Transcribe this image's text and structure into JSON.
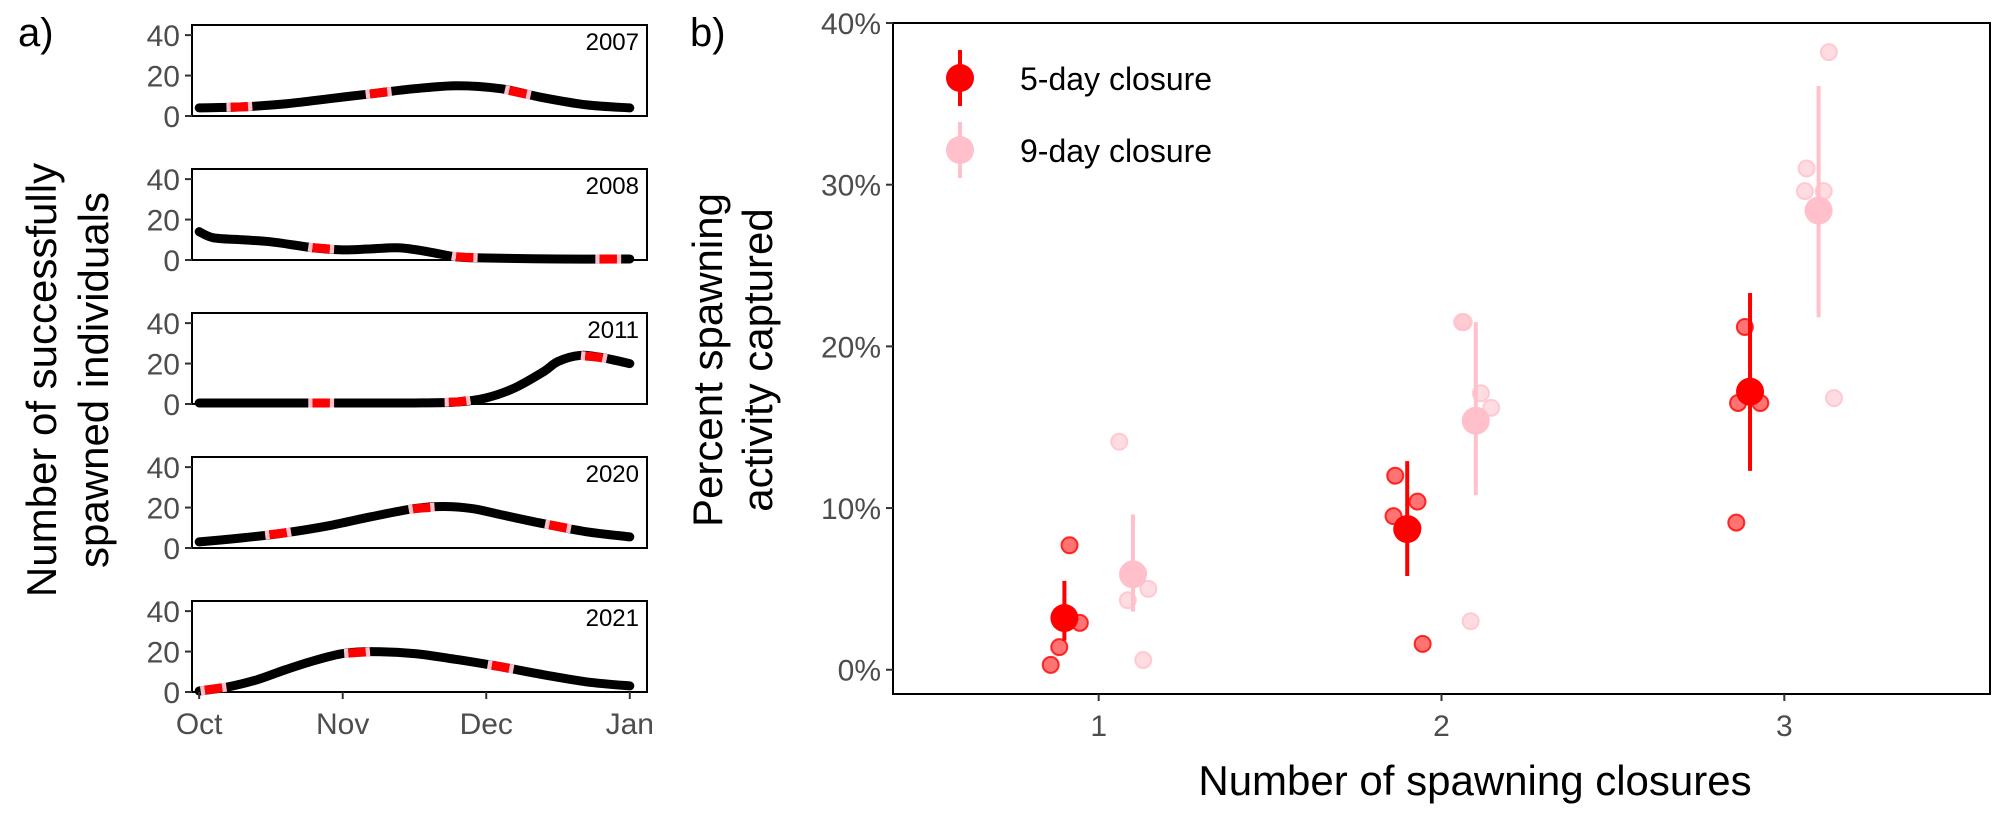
{
  "panel_a": {
    "label": "a)",
    "ylabel_line1": "Number of successfully",
    "ylabel_line2": "spawned individuals",
    "chart_data": {
      "type": "line",
      "ylim": [
        0,
        45
      ],
      "xlim": [
        -0.05,
        3.12
      ],
      "y_ticks": [
        "0",
        "20",
        "40"
      ],
      "y_tick_values": [
        0,
        20,
        40
      ],
      "x_ticks": [
        "Oct",
        "Nov",
        "Dec",
        "Jan"
      ],
      "x_tick_values": [
        0,
        1,
        2,
        3
      ],
      "colors": {
        "line": "#000000",
        "closure_5day": "#ff0000",
        "closure_9day": "#ffc0cb"
      },
      "panels": [
        {
          "year": "2007",
          "x": [
            0,
            0.3,
            0.6,
            0.9,
            1.2,
            1.5,
            1.8,
            2.1,
            2.4,
            2.7,
            3.0
          ],
          "y": [
            4,
            4.5,
            6,
            8.5,
            11,
            13.5,
            15,
            13.5,
            9,
            5.5,
            4
          ],
          "closures": [
            0.28,
            1.25,
            2.22
          ]
        },
        {
          "year": "2008",
          "x": [
            0,
            0.1,
            0.3,
            0.5,
            0.8,
            1.0,
            1.2,
            1.4,
            1.6,
            1.8,
            2.0,
            2.5,
            3.0
          ],
          "y": [
            14,
            11,
            10,
            9,
            6,
            5,
            5.5,
            6,
            4,
            1.5,
            1,
            0.5,
            0.5
          ],
          "closures": [
            0.85,
            1.85,
            2.85
          ]
        },
        {
          "year": "2011",
          "x": [
            0,
            0.5,
            1.0,
            1.5,
            1.8,
            2.0,
            2.2,
            2.4,
            2.5,
            2.65,
            2.8,
            3.0
          ],
          "y": [
            0.5,
            0.5,
            0.5,
            0.5,
            1,
            3,
            8,
            16,
            21,
            24,
            23,
            20
          ],
          "closures": [
            0.85,
            1.8,
            2.75
          ]
        },
        {
          "year": "2020",
          "x": [
            0,
            0.3,
            0.6,
            0.9,
            1.2,
            1.5,
            1.7,
            1.9,
            2.1,
            2.4,
            2.7,
            3.0
          ],
          "y": [
            3,
            5,
            7.5,
            11,
            15.5,
            19.5,
            20.5,
            19.5,
            16.5,
            12,
            8,
            5.5
          ],
          "closures": [
            0.55,
            1.55,
            2.5
          ]
        },
        {
          "year": "2021",
          "x": [
            0,
            0.2,
            0.4,
            0.6,
            0.8,
            1.0,
            1.2,
            1.5,
            1.8,
            2.1,
            2.4,
            2.7,
            3.0
          ],
          "y": [
            0.5,
            2.5,
            6,
            11,
            15.5,
            19,
            20,
            19,
            16,
            12.5,
            8.5,
            5,
            3
          ],
          "closures": [
            0.1,
            1.1,
            2.1
          ]
        }
      ]
    }
  },
  "panel_b": {
    "label": "b)",
    "chart_data": {
      "type": "scatter",
      "xlabel": "Number of spawning closures",
      "ylabel_line1": "Percent spawning",
      "ylabel_line2": "activity captured",
      "xlim": [
        0.4,
        3.6
      ],
      "ylim": [
        -1.5,
        40
      ],
      "x_ticks": [
        "1",
        "2",
        "3"
      ],
      "x_tick_values": [
        1,
        2,
        3
      ],
      "y_ticks": [
        "0%",
        "10%",
        "20%",
        "30%",
        "40%"
      ],
      "y_tick_values": [
        0,
        10,
        20,
        30,
        40
      ],
      "legend_position": "top-left",
      "series": [
        {
          "name": "5-day closure",
          "color": "#ff0000",
          "x": [
            1,
            2,
            3
          ],
          "mean": [
            3.2,
            8.7,
            17.2
          ],
          "lower": [
            1.8,
            5.8,
            12.3
          ],
          "upper": [
            5.5,
            12.9,
            23.3
          ],
          "points": [
            [
              1,
              0.3
            ],
            [
              1,
              7.7
            ],
            [
              1,
              2.9
            ],
            [
              1,
              1.4
            ],
            [
              2,
              10.4
            ],
            [
              2,
              12.0
            ],
            [
              2,
              9.5
            ],
            [
              2,
              8.8
            ],
            [
              2,
              1.6
            ],
            [
              3,
              21.2
            ],
            [
              3,
              16.5
            ],
            [
              3,
              16.5
            ],
            [
              3,
              9.1
            ]
          ]
        },
        {
          "name": "9-day closure",
          "color": "#ffc0cb",
          "x": [
            1,
            2,
            3
          ],
          "mean": [
            5.9,
            15.4,
            28.4
          ],
          "lower": [
            3.6,
            10.8,
            21.8
          ],
          "upper": [
            9.6,
            21.5,
            36.1
          ],
          "points": [
            [
              1,
              14.1
            ],
            [
              1,
              6.0
            ],
            [
              1,
              5.0
            ],
            [
              1,
              4.3
            ],
            [
              1,
              0.6
            ],
            [
              2,
              21.5
            ],
            [
              2,
              21.5
            ],
            [
              2,
              17.1
            ],
            [
              2,
              16.2
            ],
            [
              2,
              3.0
            ],
            [
              3,
              38.2
            ],
            [
              3,
              31.0
            ],
            [
              3,
              29.6
            ],
            [
              3,
              29.6
            ],
            [
              3,
              16.8
            ]
          ]
        }
      ]
    }
  }
}
